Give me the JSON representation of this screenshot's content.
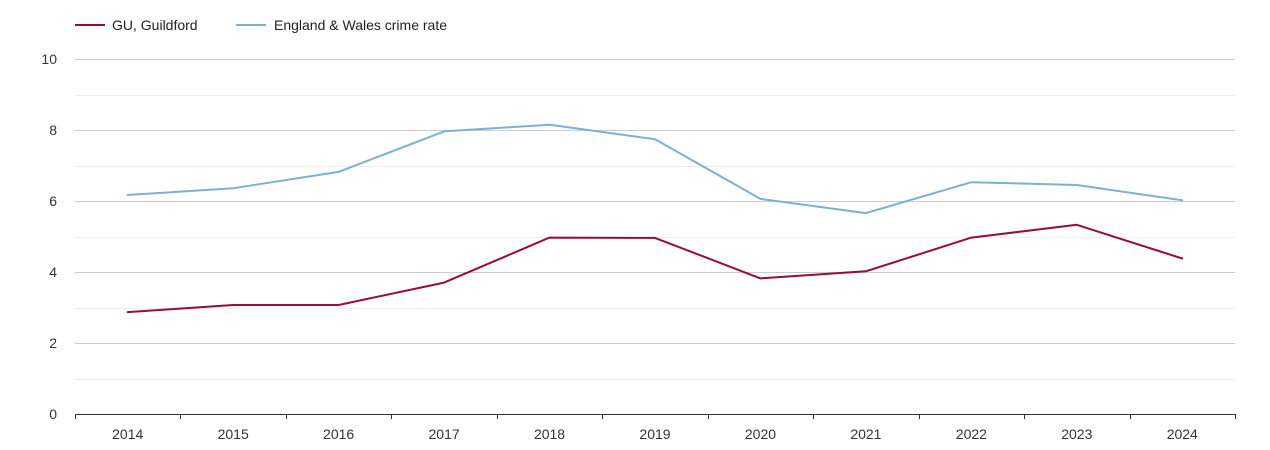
{
  "chart_data": {
    "type": "line",
    "title": "",
    "xlabel": "",
    "ylabel": "",
    "categories": [
      "2014",
      "2015",
      "2016",
      "2017",
      "2018",
      "2019",
      "2020",
      "2021",
      "2022",
      "2023",
      "2024"
    ],
    "ylim": [
      0,
      10
    ],
    "yticks": [
      0,
      2,
      4,
      6,
      8,
      10
    ],
    "minor_grid_step": 1,
    "grid": true,
    "legend_position": "top-left",
    "series": [
      {
        "name": "GU, Guildford",
        "color": "#9b0c35",
        "values": [
          2.87,
          3.07,
          3.07,
          3.7,
          4.97,
          4.96,
          3.82,
          4.02,
          4.97,
          5.33,
          4.38
        ]
      },
      {
        "name": "England & Wales crime rate",
        "color": "#7bb1d4",
        "values": [
          6.17,
          6.36,
          6.82,
          7.96,
          8.15,
          7.74,
          6.06,
          5.66,
          6.53,
          6.45,
          6.02
        ]
      }
    ]
  }
}
